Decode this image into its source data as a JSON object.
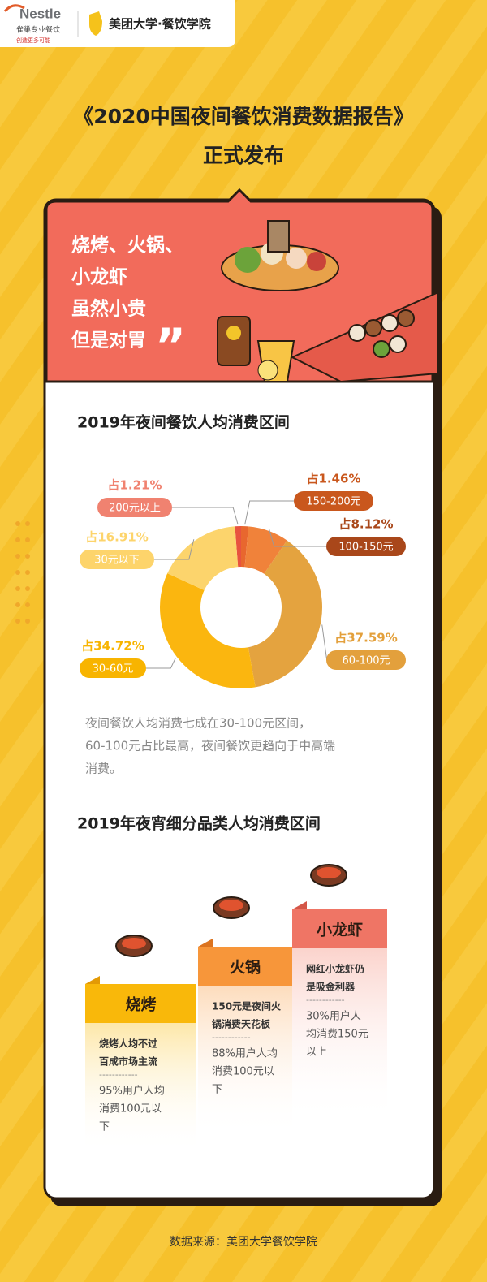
{
  "header": {
    "brand1": "Nestle",
    "brand1_cn": "雀巢专业餐饮",
    "brand1_slogan": "创造更多可能",
    "brand2": "美团大学·餐饮学院"
  },
  "title": {
    "line1": "《2020中国夜间餐饮消费数据报告》",
    "line2": "正式发布"
  },
  "hero": {
    "lines": [
      "烧烤、火锅、",
      "小龙虾",
      "虽然小贵",
      "但是对胃"
    ]
  },
  "chart_data": {
    "type": "donut",
    "title": "2019年夜间餐饮人均消费区间",
    "categories": [
      "200元以上",
      "150-200元",
      "100-150元",
      "60-100元",
      "30-60元",
      "30元以下"
    ],
    "values": [
      1.21,
      1.46,
      8.12,
      37.59,
      34.72,
      16.91
    ],
    "value_labels": [
      "占1.21%",
      "占1.46%",
      "占8.12%",
      "占37.59%",
      "占34.72%",
      "占16.91%"
    ],
    "colors": [
      "#e8533f",
      "#e8672e",
      "#f0823a",
      "#e4a33f",
      "#fbb60f",
      "#fcd46c"
    ]
  },
  "note": {
    "lines": [
      "夜间餐饮人均消费七成在30-100元区间，",
      "60-100元占比最高，夜间餐饮更趋向于中高端",
      "消费。"
    ]
  },
  "section2": {
    "title": "2019年夜宵细分品类人均消费区间",
    "columns": [
      {
        "name": "烧烤",
        "highlight": [
          "烧烤人均不过",
          "百成市场主流"
        ],
        "separator": "------------",
        "detail": [
          "95%用户人均",
          "消费100元以",
          "下"
        ]
      },
      {
        "name": "火锅",
        "highlight": [
          "150元是夜间火",
          "锅消费天花板"
        ],
        "separator": "------------",
        "detail": [
          "88%用户人均",
          "消费100元以",
          "下"
        ]
      },
      {
        "name": "小龙虾",
        "highlight": [
          "网红小龙虾仍",
          "是吸金利器"
        ],
        "separator": "------------",
        "detail": [
          "30%用户人",
          "均消费150元",
          "以上"
        ]
      }
    ]
  },
  "source": "数据来源：美团大学餐饮学院"
}
